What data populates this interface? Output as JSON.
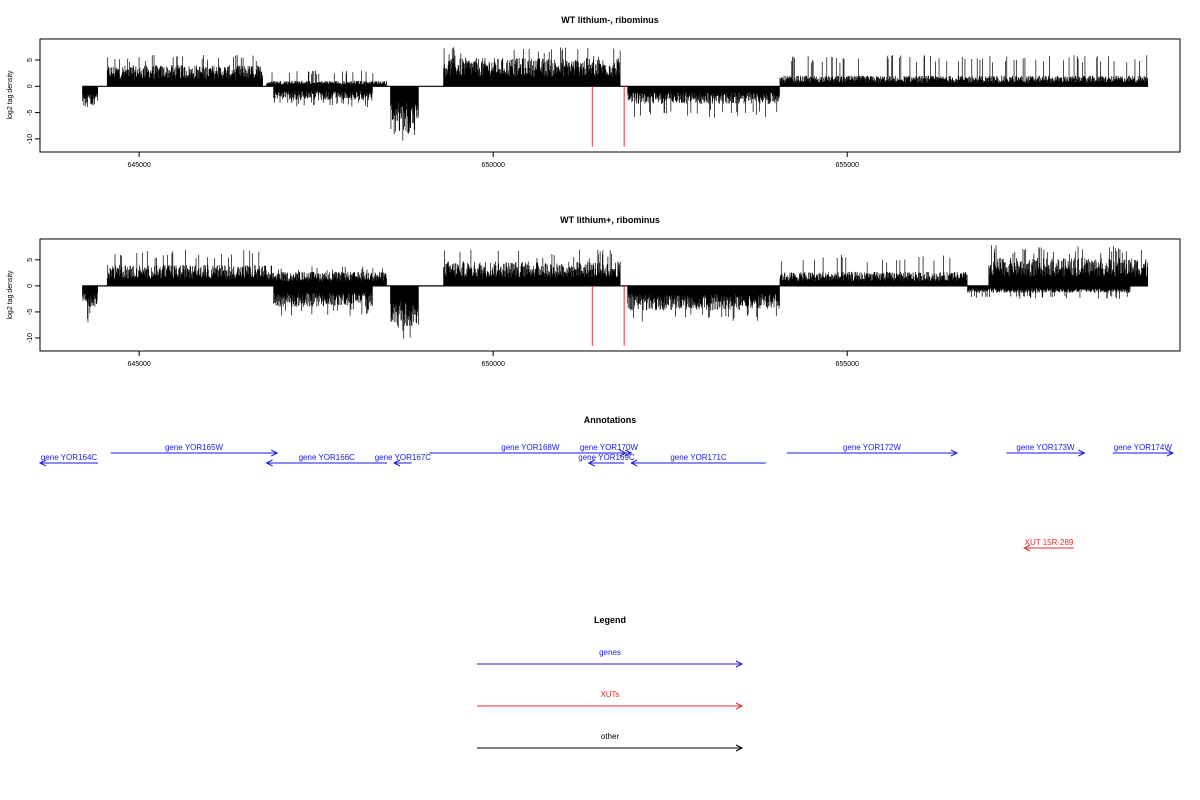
{
  "chart_data": [
    {
      "type": "bar",
      "title": "WT lithium-, ribominus",
      "xlabel": "",
      "ylabel": "log2 tag density",
      "xlim": [
        643600,
        659700
      ],
      "ylim": [
        -12.5,
        9
      ],
      "xticks": [
        645000,
        650000,
        655000
      ],
      "xtick_labels": [
        "645000",
        "650000",
        "655000"
      ],
      "yticks": [
        5,
        0,
        -5,
        -10
      ],
      "ytick_labels": [
        "5",
        "0",
        "-5",
        "-10"
      ],
      "positive_segments": [
        {
          "start": 644550,
          "end": 646750,
          "level": 3,
          "max": 6
        },
        {
          "start": 646800,
          "end": 648500,
          "level": 0.8,
          "max": 3
        },
        {
          "start": 649300,
          "end": 651800,
          "level": 4,
          "max": 7.5
        },
        {
          "start": 654050,
          "end": 659250,
          "level": 1.5,
          "max": 6
        }
      ],
      "negative_segments": [
        {
          "start": 644200,
          "end": 644420,
          "level": -3,
          "max": -6
        },
        {
          "start": 646900,
          "end": 648300,
          "level": -2,
          "max": -4
        },
        {
          "start": 648550,
          "end": 648950,
          "level": -7,
          "max": -11
        },
        {
          "start": 651900,
          "end": 654050,
          "level": -2.5,
          "max": -6
        }
      ],
      "markers": [
        651400,
        651850
      ],
      "marker_color": "#e0302f"
    },
    {
      "type": "bar",
      "title": "WT lithium+, ribominus",
      "xlabel": "",
      "ylabel": "log2 tag density",
      "xlim": [
        643600,
        659700
      ],
      "ylim": [
        -12.5,
        9
      ],
      "xticks": [
        645000,
        650000,
        655000
      ],
      "xtick_labels": [
        "645000",
        "650000",
        "655000"
      ],
      "yticks": [
        5,
        0,
        -5,
        -10
      ],
      "ytick_labels": [
        "5",
        "0",
        "-5",
        "-10"
      ],
      "positive_segments": [
        {
          "start": 644550,
          "end": 646800,
          "level": 3,
          "max": 7
        },
        {
          "start": 646800,
          "end": 648500,
          "level": 2,
          "max": 4
        },
        {
          "start": 649300,
          "end": 651800,
          "level": 3.5,
          "max": 7
        },
        {
          "start": 654050,
          "end": 656700,
          "level": 2,
          "max": 6
        },
        {
          "start": 657000,
          "end": 659250,
          "level": 4,
          "max": 8
        }
      ],
      "negative_segments": [
        {
          "start": 644200,
          "end": 644420,
          "level": -3,
          "max": -7
        },
        {
          "start": 646900,
          "end": 648300,
          "level": -3,
          "max": -6
        },
        {
          "start": 648550,
          "end": 648950,
          "level": -6,
          "max": -11
        },
        {
          "start": 651900,
          "end": 654050,
          "level": -3.5,
          "max": -7
        },
        {
          "start": 656700,
          "end": 659000,
          "level": -1,
          "max": -2.5
        }
      ],
      "markers": [
        651400,
        651850
      ],
      "marker_color": "#e0302f"
    }
  ],
  "annotations": {
    "title": "Annotations",
    "genes_color": "#1a1ae6",
    "xuts_color": "#e0302f",
    "genes": [
      {
        "label": "gene YOR164C",
        "start": 643600,
        "end": 644420,
        "strand": "-",
        "row": 2
      },
      {
        "label": "gene YOR165W",
        "start": 644600,
        "end": 646950,
        "strand": "+",
        "row": 1
      },
      {
        "label": "gene YOR166C",
        "start": 646800,
        "end": 648500,
        "strand": "-",
        "row": 2
      },
      {
        "label": "gene YOR167C",
        "start": 648600,
        "end": 648850,
        "strand": "-",
        "row": 2
      },
      {
        "label": "gene YOR168W",
        "start": 649100,
        "end": 651950,
        "strand": "+",
        "row": 1
      },
      {
        "label": "gene YOR170W",
        "start": 651400,
        "end": 651870,
        "strand": "+",
        "row": 1
      },
      {
        "label": "gene YOR169C",
        "start": 651350,
        "end": 651850,
        "strand": "-",
        "row": 2
      },
      {
        "label": "gene YOR171C",
        "start": 651950,
        "end": 653850,
        "strand": "-",
        "row": 2
      },
      {
        "label": "gene YOR172W",
        "start": 654150,
        "end": 656550,
        "strand": "+",
        "row": 1
      },
      {
        "label": "gene YOR173W",
        "start": 657250,
        "end": 658350,
        "strand": "+",
        "row": 1
      },
      {
        "label": "gene YOR174W",
        "start": 658750,
        "end": 659600,
        "strand": "+",
        "row": 1
      }
    ],
    "xuts": [
      {
        "label": "XUT 15R-289",
        "start": 657500,
        "end": 658200,
        "strand": "-"
      }
    ]
  },
  "legend": {
    "title": "Legend",
    "items": [
      {
        "label": "genes",
        "color": "#1a1ae6"
      },
      {
        "label": "XUTs",
        "color": "#e0302f"
      },
      {
        "label": "other",
        "color": "#000000"
      }
    ]
  }
}
